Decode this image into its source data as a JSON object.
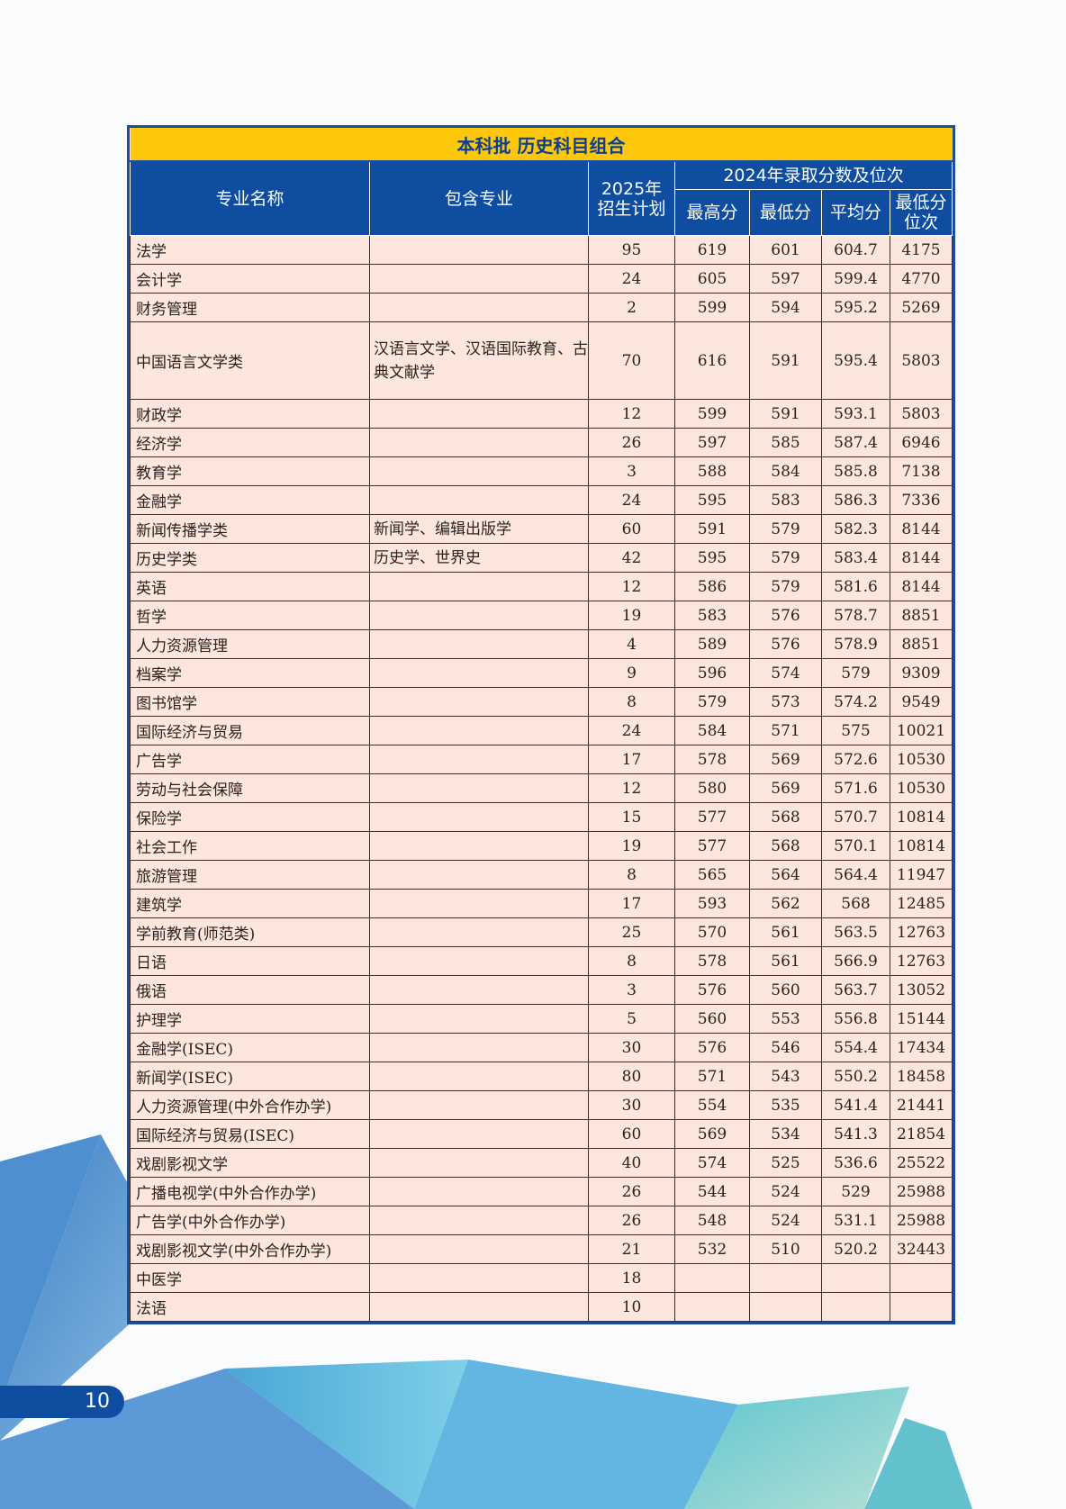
{
  "table": {
    "title": "本科批  历史科目组合",
    "headers": {
      "major": "专业名称",
      "includes": "包含专业",
      "plan": "2025年招生计划",
      "score_group": "2024年录取分数及位次",
      "max": "最高分",
      "min": "最低分",
      "avg": "平均分",
      "min_rank": "最低分位次"
    },
    "rows": [
      {
        "major": "法学",
        "includes": "",
        "plan": "95",
        "max": "619",
        "min": "601",
        "avg": "604.7",
        "rank": "4175"
      },
      {
        "major": "会计学",
        "includes": "",
        "plan": "24",
        "max": "605",
        "min": "597",
        "avg": "599.4",
        "rank": "4770"
      },
      {
        "major": "财务管理",
        "includes": "",
        "plan": "2",
        "max": "599",
        "min": "594",
        "avg": "595.2",
        "rank": "5269"
      },
      {
        "major": "中国语言文学类",
        "includes": "汉语言文学、汉语国际教育、古典文献学",
        "plan": "70",
        "max": "616",
        "min": "591",
        "avg": "595.4",
        "rank": "5803"
      },
      {
        "major": "财政学",
        "includes": "",
        "plan": "12",
        "max": "599",
        "min": "591",
        "avg": "593.1",
        "rank": "5803"
      },
      {
        "major": "经济学",
        "includes": "",
        "plan": "26",
        "max": "597",
        "min": "585",
        "avg": "587.4",
        "rank": "6946"
      },
      {
        "major": "教育学",
        "includes": "",
        "plan": "3",
        "max": "588",
        "min": "584",
        "avg": "585.8",
        "rank": "7138"
      },
      {
        "major": "金融学",
        "includes": "",
        "plan": "24",
        "max": "595",
        "min": "583",
        "avg": "586.3",
        "rank": "7336"
      },
      {
        "major": "新闻传播学类",
        "includes": "新闻学、编辑出版学",
        "plan": "60",
        "max": "591",
        "min": "579",
        "avg": "582.3",
        "rank": "8144"
      },
      {
        "major": "历史学类",
        "includes": "历史学、世界史",
        "plan": "42",
        "max": "595",
        "min": "579",
        "avg": "583.4",
        "rank": "8144"
      },
      {
        "major": "英语",
        "includes": "",
        "plan": "12",
        "max": "586",
        "min": "579",
        "avg": "581.6",
        "rank": "8144"
      },
      {
        "major": "哲学",
        "includes": "",
        "plan": "19",
        "max": "583",
        "min": "576",
        "avg": "578.7",
        "rank": "8851"
      },
      {
        "major": "人力资源管理",
        "includes": "",
        "plan": "4",
        "max": "589",
        "min": "576",
        "avg": "578.9",
        "rank": "8851"
      },
      {
        "major": "档案学",
        "includes": "",
        "plan": "9",
        "max": "596",
        "min": "574",
        "avg": "579",
        "rank": "9309"
      },
      {
        "major": "图书馆学",
        "includes": "",
        "plan": "8",
        "max": "579",
        "min": "573",
        "avg": "574.2",
        "rank": "9549"
      },
      {
        "major": "国际经济与贸易",
        "includes": "",
        "plan": "24",
        "max": "584",
        "min": "571",
        "avg": "575",
        "rank": "10021"
      },
      {
        "major": "广告学",
        "includes": "",
        "plan": "17",
        "max": "578",
        "min": "569",
        "avg": "572.6",
        "rank": "10530"
      },
      {
        "major": "劳动与社会保障",
        "includes": "",
        "plan": "12",
        "max": "580",
        "min": "569",
        "avg": "571.6",
        "rank": "10530"
      },
      {
        "major": "保险学",
        "includes": "",
        "plan": "15",
        "max": "577",
        "min": "568",
        "avg": "570.7",
        "rank": "10814"
      },
      {
        "major": "社会工作",
        "includes": "",
        "plan": "19",
        "max": "577",
        "min": "568",
        "avg": "570.1",
        "rank": "10814"
      },
      {
        "major": "旅游管理",
        "includes": "",
        "plan": "8",
        "max": "565",
        "min": "564",
        "avg": "564.4",
        "rank": "11947"
      },
      {
        "major": "建筑学",
        "includes": "",
        "plan": "17",
        "max": "593",
        "min": "562",
        "avg": "568",
        "rank": "12485"
      },
      {
        "major": "学前教育(师范类)",
        "includes": "",
        "plan": "25",
        "max": "570",
        "min": "561",
        "avg": "563.5",
        "rank": "12763"
      },
      {
        "major": "日语",
        "includes": "",
        "plan": "8",
        "max": "578",
        "min": "561",
        "avg": "566.9",
        "rank": "12763"
      },
      {
        "major": "俄语",
        "includes": "",
        "plan": "3",
        "max": "576",
        "min": "560",
        "avg": "563.7",
        "rank": "13052"
      },
      {
        "major": "护理学",
        "includes": "",
        "plan": "5",
        "max": "560",
        "min": "553",
        "avg": "556.8",
        "rank": "15144"
      },
      {
        "major": "金融学(ISEC)",
        "includes": "",
        "plan": "30",
        "max": "576",
        "min": "546",
        "avg": "554.4",
        "rank": "17434"
      },
      {
        "major": "新闻学(ISEC)",
        "includes": "",
        "plan": "80",
        "max": "571",
        "min": "543",
        "avg": "550.2",
        "rank": "18458"
      },
      {
        "major": "人力资源管理(中外合作办学)",
        "includes": "",
        "plan": "30",
        "max": "554",
        "min": "535",
        "avg": "541.4",
        "rank": "21441"
      },
      {
        "major": "国际经济与贸易(ISEC)",
        "includes": "",
        "plan": "60",
        "max": "569",
        "min": "534",
        "avg": "541.3",
        "rank": "21854"
      },
      {
        "major": "戏剧影视文学",
        "includes": "",
        "plan": "40",
        "max": "574",
        "min": "525",
        "avg": "536.6",
        "rank": "25522"
      },
      {
        "major": "广播电视学(中外合作办学)",
        "includes": "",
        "plan": "26",
        "max": "544",
        "min": "524",
        "avg": "529",
        "rank": "25988"
      },
      {
        "major": "广告学(中外合作办学)",
        "includes": "",
        "plan": "26",
        "max": "548",
        "min": "524",
        "avg": "531.1",
        "rank": "25988"
      },
      {
        "major": "戏剧影视文学(中外合作办学)",
        "includes": "",
        "plan": "21",
        "max": "532",
        "min": "510",
        "avg": "520.2",
        "rank": "32443"
      },
      {
        "major": "中医学",
        "includes": "",
        "plan": "18",
        "max": "",
        "min": "",
        "avg": "",
        "rank": ""
      },
      {
        "major": "法语",
        "includes": "",
        "plan": "10",
        "max": "",
        "min": "",
        "avg": "",
        "rank": ""
      }
    ]
  },
  "page_number": "10",
  "colors": {
    "title_bg": "#fdc80a",
    "header_bg": "#0e4da0",
    "row_bg": "#fde6dc",
    "border": "#1a4d9e"
  }
}
